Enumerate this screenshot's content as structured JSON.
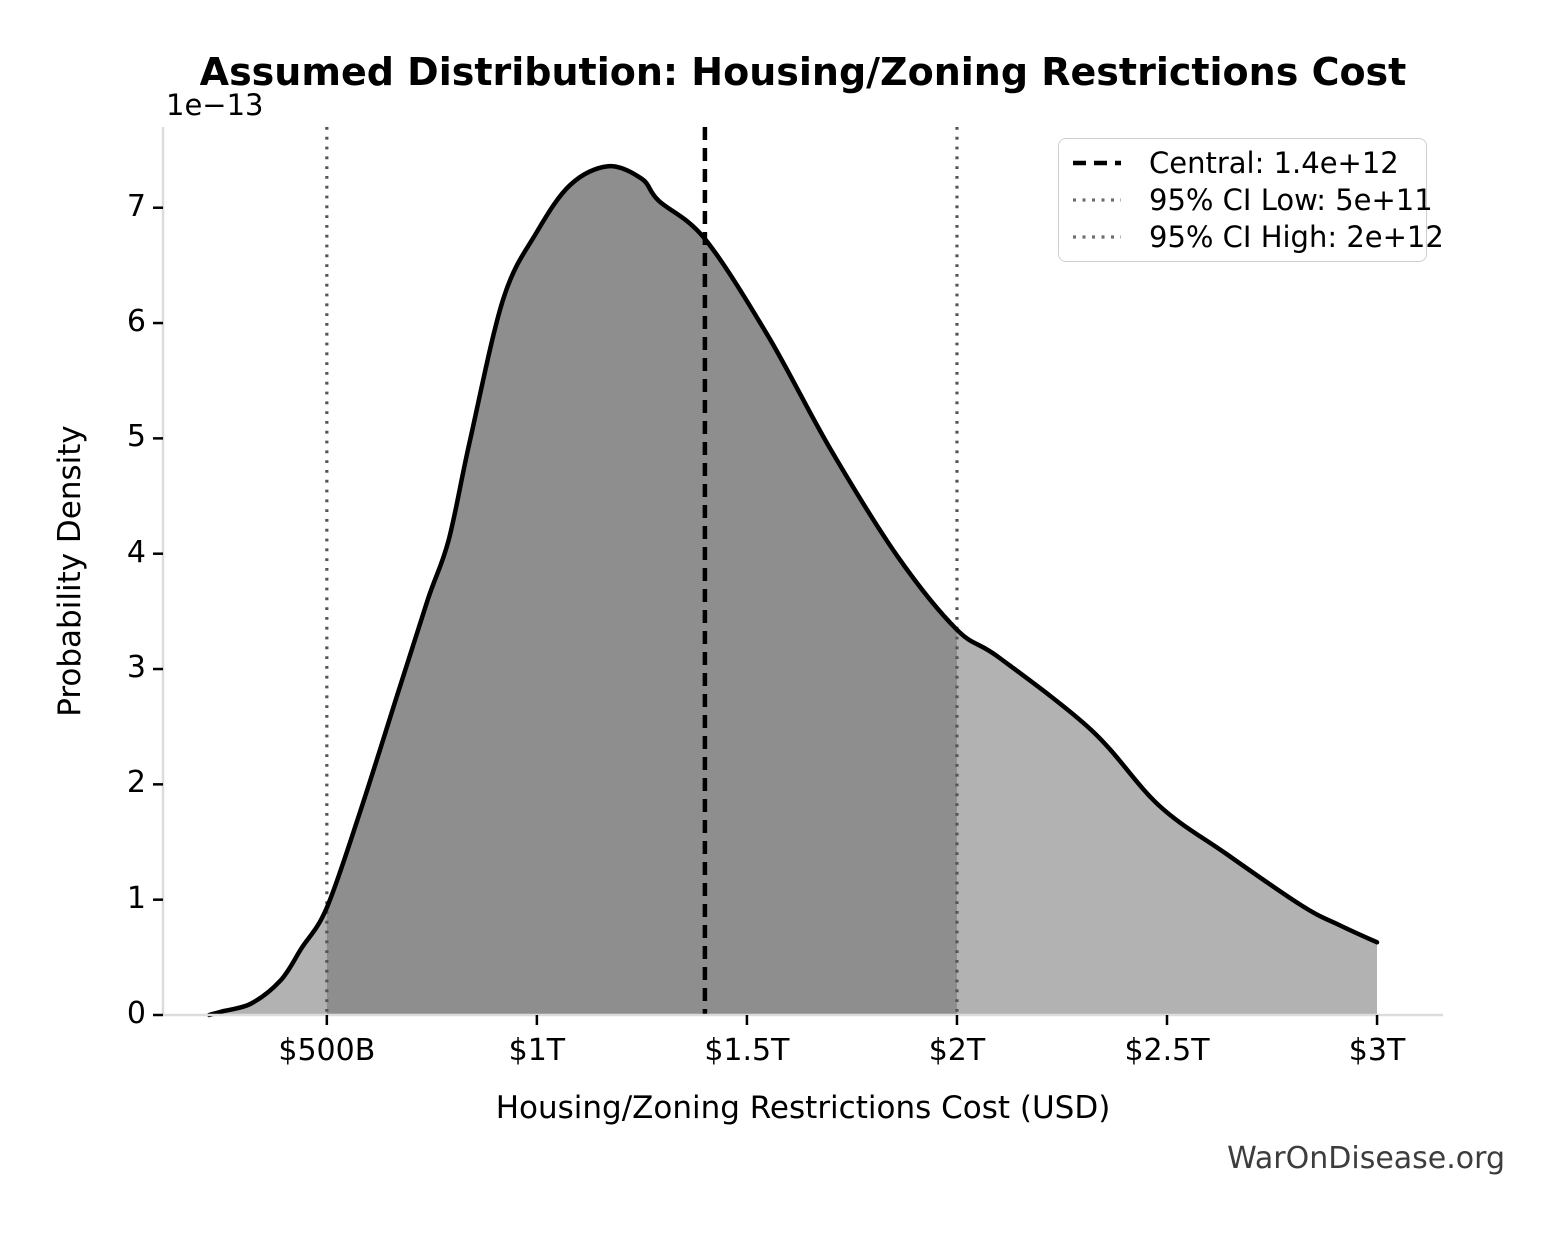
{
  "chart_data": {
    "type": "area",
    "title": "Assumed Distribution: Housing/Zoning Restrictions Cost",
    "xlabel": "Housing/Zoning Restrictions Cost (USD)",
    "ylabel": "Probability Density",
    "y_offset_text": "1e−13",
    "watermark": "WarOnDisease.org",
    "grid": false,
    "legend_position": "upper right",
    "xlim": [
      110000000000.0,
      3157000000000.0
    ],
    "ylim": [
      0,
      7.7e-13
    ],
    "x_ticks": [
      {
        "value": 500000000000.0,
        "label": "$500B"
      },
      {
        "value": 1000000000000.0,
        "label": "$1T"
      },
      {
        "value": 1500000000000.0,
        "label": "$1.5T"
      },
      {
        "value": 2000000000000.0,
        "label": "$2T"
      },
      {
        "value": 2500000000000.0,
        "label": "$2.5T"
      },
      {
        "value": 3000000000000.0,
        "label": "$3T"
      }
    ],
    "y_ticks": [
      {
        "value": 0,
        "label": "0"
      },
      {
        "value": 1e-13,
        "label": "1"
      },
      {
        "value": 2e-13,
        "label": "2"
      },
      {
        "value": 3e-13,
        "label": "3"
      },
      {
        "value": 4e-13,
        "label": "4"
      },
      {
        "value": 5e-13,
        "label": "5"
      },
      {
        "value": 6e-13,
        "label": "6"
      },
      {
        "value": 7e-13,
        "label": "7"
      }
    ],
    "curve_points": [
      [
        220000000000.0,
        0.0
      ],
      [
        250000000000.0,
        3e-15
      ],
      [
        320000000000.0,
        1e-14
      ],
      [
        390000000000.0,
        3e-14
      ],
      [
        440000000000.0,
        5.8e-14
      ],
      [
        500000000000.0,
        9.3e-14
      ],
      [
        580000000000.0,
        1.77e-13
      ],
      [
        670000000000.0,
        2.8e-13
      ],
      [
        740000000000.0,
        3.6e-13
      ],
      [
        790000000000.0,
        4.12e-13
      ],
      [
        840000000000.0,
        4.97e-13
      ],
      [
        920000000000.0,
        6.21e-13
      ],
      [
        1000000000000.0,
        6.79e-13
      ],
      [
        1080000000000.0,
        7.2e-13
      ],
      [
        1170000000000.0,
        7.36e-13
      ],
      [
        1250000000000.0,
        7.25e-13
      ],
      [
        1290000000000.0,
        7.06e-13
      ],
      [
        1400000000000.0,
        6.73e-13
      ],
      [
        1550000000000.0,
        5.89e-13
      ],
      [
        1700000000000.0,
        4.9e-13
      ],
      [
        1860000000000.0,
        3.97e-13
      ],
      [
        2000000000000.0,
        3.34e-13
      ],
      [
        2100000000000.0,
        3.1e-13
      ],
      [
        2320000000000.0,
        2.47e-13
      ],
      [
        2480000000000.0,
        1.82e-13
      ],
      [
        2640000000000.0,
        1.4e-13
      ],
      [
        2820000000000.0,
        9.5e-14
      ],
      [
        2910000000000.0,
        7.8e-14
      ],
      [
        3000000000000.0,
        6.3e-14
      ]
    ],
    "central": {
      "value": 1400000000000.0,
      "label": "Central: 1.4e+12",
      "style": "dashed",
      "color": "#000000"
    },
    "ci_low": {
      "value": 500000000000.0,
      "label": "95% CI Low: 5e+11",
      "style": "dotted",
      "color": "#555555"
    },
    "ci_high": {
      "value": 2000000000000.0,
      "label": "95% CI High: 2e+12",
      "style": "dotted",
      "color": "#555555"
    },
    "line_color": "#000000",
    "fill_color_full": "#b2b2b2",
    "fill_color_ci": "#8e8e8e",
    "spine_color": "#dcdcdc",
    "tick_color": "#000000"
  }
}
